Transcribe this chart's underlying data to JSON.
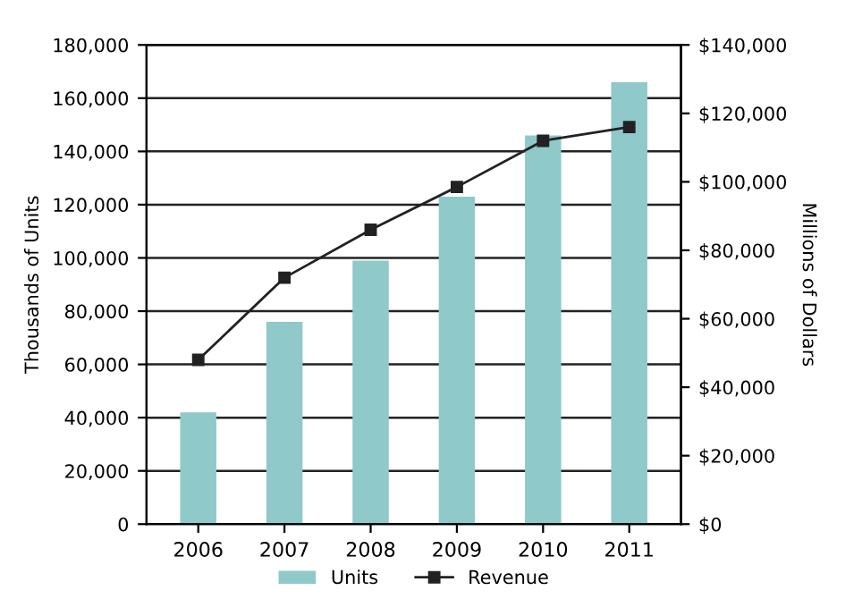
{
  "chart_data": {
    "type": "bar",
    "categories": [
      "2006",
      "2007",
      "2008",
      "2009",
      "2010",
      "2011"
    ],
    "series": [
      {
        "name": "Units",
        "color": "#8fc9c9",
        "values": [
          42000,
          76000,
          99000,
          123000,
          146000,
          166000
        ]
      },
      {
        "name": "Revenue",
        "type": "line",
        "axis": "y2",
        "color": "#222222",
        "values": [
          48000,
          72000,
          86000,
          98500,
          112000,
          116000
        ]
      }
    ],
    "ylabel": "Thousands of Units",
    "y2label": "Millions of Dollars",
    "ylim": [
      0,
      180000
    ],
    "yticks": [
      {
        "value": 0,
        "label": "0"
      },
      {
        "value": 20000,
        "label": "20,000"
      },
      {
        "value": 40000,
        "label": "40,000"
      },
      {
        "value": 60000,
        "label": "60,000"
      },
      {
        "value": 80000,
        "label": "80,000"
      },
      {
        "value": 100000,
        "label": "100,000"
      },
      {
        "value": 120000,
        "label": "120,000"
      },
      {
        "value": 140000,
        "label": "140,000"
      },
      {
        "value": 160000,
        "label": "160,000"
      },
      {
        "value": 180000,
        "label": "180,000"
      }
    ],
    "y2lim": [
      0,
      140000
    ],
    "y2ticks": [
      {
        "value": 0,
        "label": "$0"
      },
      {
        "value": 20000,
        "label": "$20,000"
      },
      {
        "value": 40000,
        "label": "$40,000"
      },
      {
        "value": 60000,
        "label": "$60,000"
      },
      {
        "value": 80000,
        "label": "$80,000"
      },
      {
        "value": 100000,
        "label": "$100,000"
      },
      {
        "value": 120000,
        "label": "$120,000"
      },
      {
        "value": 140000,
        "label": "$140,000"
      }
    ],
    "grid": "y",
    "legend": "bottom",
    "marker": "square",
    "line_style": "solid"
  }
}
